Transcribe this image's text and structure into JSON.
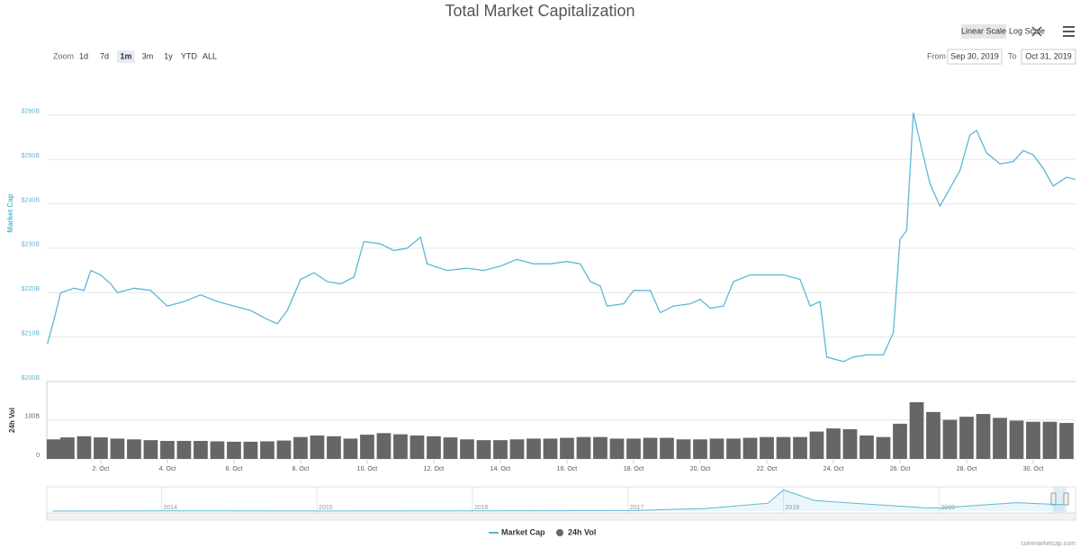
{
  "title": "Total Market Capitalization",
  "toolbar": {
    "zoom_label": "Zoom",
    "zoom_buttons": [
      "1d",
      "7d",
      "1m",
      "3m",
      "1y",
      "YTD",
      "ALL"
    ],
    "selected_zoom_index": 2,
    "scale_buttons": [
      "Linear Scale",
      "Log Scale"
    ],
    "selected_scale_index": 0,
    "from_label": "From",
    "from": "Sep 30, 2019",
    "to_label": "To",
    "to": "Oct 31, 2019"
  },
  "credit": "coinmarketcap.com",
  "chart_data": [
    {
      "type": "line",
      "ylabel": "Market Cap",
      "x": [
        0.4,
        0.6,
        0.8,
        1.2,
        1.5,
        1.7,
        2.0,
        2.3,
        2.5,
        3.0,
        3.5,
        4.0,
        4.5,
        5.0,
        5.5,
        6.0,
        6.5,
        7.0,
        7.3,
        7.6,
        8.0,
        8.4,
        8.8,
        9.2,
        9.6,
        9.9,
        10.4,
        10.8,
        11.2,
        11.6,
        11.8,
        12.4,
        13.0,
        13.5,
        14.0,
        14.5,
        15.0,
        15.5,
        16.0,
        16.4,
        16.7,
        17.0,
        17.2,
        17.7,
        18.0,
        18.5,
        18.8,
        19.2,
        19.7,
        20.0,
        20.3,
        20.7,
        21.0,
        21.5,
        22.0,
        22.5,
        23.0,
        23.3,
        23.6,
        23.8,
        24.3,
        24.6,
        25.0,
        25.5,
        25.8,
        26.0,
        26.2,
        26.4,
        26.6,
        26.9,
        27.2,
        27.5,
        27.8,
        28.1,
        28.3,
        28.6,
        29.0,
        29.4,
        29.7,
        30.0,
        30.3,
        30.6,
        31.0,
        31.27
      ],
      "series": [
        {
          "name": "Market Cap",
          "color": "#5cb8d6",
          "values": [
            208.5,
            214,
            220,
            221,
            220.5,
            225,
            224,
            222,
            220,
            221,
            220.5,
            217,
            218,
            219.5,
            218,
            217,
            216,
            214,
            213,
            216,
            223,
            224.5,
            222.5,
            222,
            223.5,
            231.5,
            231,
            229.5,
            230,
            232.5,
            226.5,
            225,
            225.5,
            225,
            226,
            227.5,
            226.5,
            226.5,
            227,
            226.5,
            222.5,
            221.5,
            217,
            217.5,
            220.5,
            220.5,
            215.5,
            217,
            217.5,
            218.5,
            216.5,
            217,
            222.5,
            224,
            224,
            224,
            223,
            217,
            218,
            205.5,
            204.5,
            205.5,
            206,
            206,
            211,
            232,
            234,
            260.5,
            254,
            244.5,
            239.5,
            243.5,
            247.5,
            255.5,
            256.5,
            251.5,
            249,
            249.5,
            252,
            251,
            248,
            244,
            246,
            245.5
          ]
        }
      ],
      "xlim": [
        0.38,
        31.27
      ],
      "xticks": [
        {
          "value": 2,
          "label": "2. Oct"
        },
        {
          "value": 4,
          "label": "4. Oct"
        },
        {
          "value": 6,
          "label": "6. Oct"
        },
        {
          "value": 8,
          "label": "8. Oct"
        },
        {
          "value": 10,
          "label": "10. Oct"
        },
        {
          "value": 12,
          "label": "12. Oct"
        },
        {
          "value": 14,
          "label": "14. Oct"
        },
        {
          "value": 16,
          "label": "16. Oct"
        },
        {
          "value": 18,
          "label": "18. Oct"
        },
        {
          "value": 20,
          "label": "20. Oct"
        },
        {
          "value": 22,
          "label": "22. Oct"
        },
        {
          "value": 24,
          "label": "24. Oct"
        },
        {
          "value": 26,
          "label": "26. Oct"
        },
        {
          "value": 28,
          "label": "28. Oct"
        },
        {
          "value": 30,
          "label": "30. Oct"
        }
      ],
      "ylim": [
        200,
        263
      ],
      "yticks": [
        {
          "value": 200,
          "label": "$200B"
        },
        {
          "value": 210,
          "label": "$210B"
        },
        {
          "value": 220,
          "label": "$220B"
        },
        {
          "value": 230,
          "label": "$230B"
        },
        {
          "value": 240,
          "label": "$240B"
        },
        {
          "value": 250,
          "label": "$250B"
        },
        {
          "value": 260,
          "label": "$260B"
        }
      ],
      "grid": true
    },
    {
      "type": "bar",
      "ylabel": "24h Vol",
      "x": [
        0.5,
        1,
        1.5,
        2,
        2.5,
        3,
        3.5,
        4,
        4.5,
        5,
        5.5,
        6,
        6.5,
        7,
        7.5,
        8,
        8.5,
        9,
        9.5,
        10,
        10.5,
        11,
        11.5,
        12,
        12.5,
        13,
        13.5,
        14,
        14.5,
        15,
        15.5,
        16,
        16.5,
        17,
        17.5,
        18,
        18.5,
        19,
        19.5,
        20,
        20.5,
        21,
        21.5,
        22,
        22.5,
        23,
        23.5,
        24,
        24.5,
        25,
        25.5,
        26,
        26.5,
        27,
        27.5,
        28,
        28.5,
        29,
        29.5,
        30,
        30.5,
        31
      ],
      "series": [
        {
          "name": "24h Vol",
          "color": "#666666",
          "values": [
            50,
            55,
            58,
            55,
            52,
            50,
            48,
            46,
            46,
            46,
            45,
            44,
            44,
            45,
            47,
            56,
            60,
            58,
            52,
            62,
            66,
            63,
            60,
            58,
            55,
            50,
            48,
            48,
            50,
            52,
            52,
            54,
            56,
            56,
            52,
            52,
            54,
            54,
            50,
            50,
            52,
            52,
            54,
            56,
            56,
            56,
            70,
            78,
            76,
            60,
            56,
            90,
            145,
            120,
            100,
            108,
            115,
            105,
            98,
            95,
            95,
            92
          ]
        }
      ],
      "ylim": [
        0,
        198
      ],
      "yticks": [
        0,
        {
          "value": 100,
          "label": "100B"
        }
      ],
      "grid": true
    },
    {
      "type": "area",
      "x": [
        2013.3,
        2014,
        2015,
        2016,
        2017,
        2017.5,
        2017.9,
        2018.0,
        2018.05,
        2018.2,
        2018.5,
        2018.9,
        2019.0,
        2019.5,
        2019.8
      ],
      "series": [
        {
          "name": "Market Cap",
          "color": "#5cb8d6",
          "values": [
            1,
            10,
            5,
            7,
            18,
            100,
            300,
            800,
            700,
            400,
            280,
            130,
            120,
            320,
            240
          ]
        }
      ],
      "xlim": [
        2013.28,
        2019.82
      ],
      "xticks": [
        2014,
        2015,
        2016,
        2017,
        2018,
        2019
      ],
      "ylim": [
        0,
        850
      ]
    }
  ]
}
